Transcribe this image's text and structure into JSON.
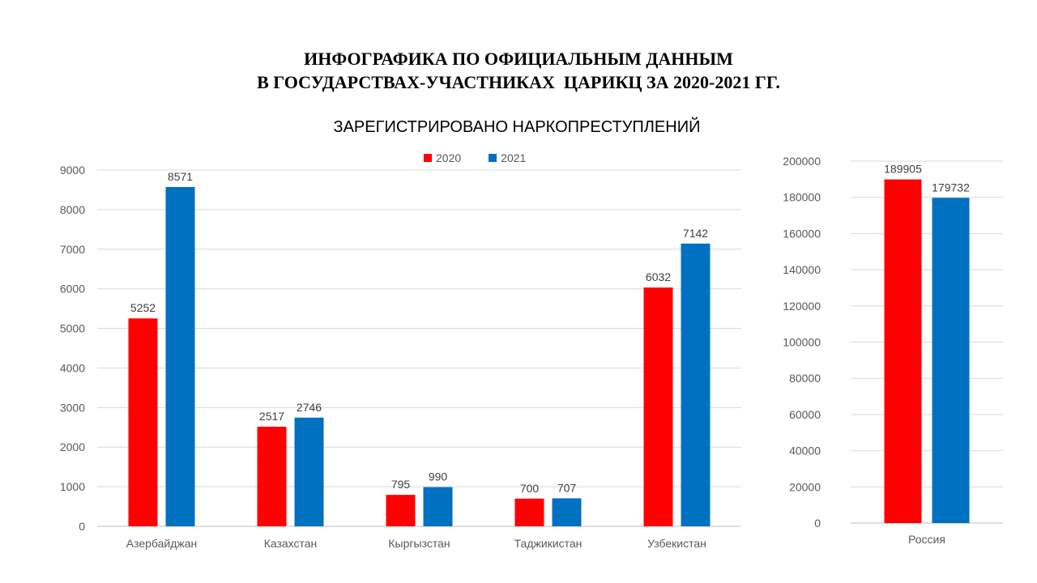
{
  "header": {
    "title_lines": [
      "ИНФОГРАФИКА ПО ОФИЦИАЛЬНЫМ ДАННЫМ",
      "В ГОСУДАРСТВАХ-УЧАСТНИКАХ  ЦАРИКЦ ЗА 2020-2021 ГГ."
    ],
    "subtitle": "ЗАРЕГИСТРИРОВАНО НАРКОПРЕСТУПЛЕНИЙ"
  },
  "legend": [
    {
      "name": "2020",
      "color": "#FF0000"
    },
    {
      "name": "2021",
      "color": "#0070C0"
    }
  ],
  "chart_data": [
    {
      "type": "bar",
      "categories": [
        "Азербайджан",
        "Казахстан",
        "Кыргызстан",
        "Таджикистан",
        "Узбекистан"
      ],
      "series": [
        {
          "name": "2020",
          "color": "#FF0000",
          "values": [
            5252,
            2517,
            795,
            700,
            6032
          ]
        },
        {
          "name": "2021",
          "color": "#0070C0",
          "values": [
            8571,
            2746,
            990,
            707,
            7142
          ]
        }
      ],
      "ylim": [
        0,
        9000
      ],
      "yticks": [
        0,
        1000,
        2000,
        3000,
        4000,
        5000,
        6000,
        7000,
        8000,
        9000
      ],
      "grid": true,
      "data_labels": true
    },
    {
      "type": "bar",
      "categories": [
        "Россия"
      ],
      "series": [
        {
          "name": "2020",
          "color": "#FF0000",
          "values": [
            189905
          ]
        },
        {
          "name": "2021",
          "color": "#0070C0",
          "values": [
            179732
          ]
        }
      ],
      "ylim": [
        0,
        200000
      ],
      "yticks": [
        0,
        20000,
        40000,
        60000,
        80000,
        100000,
        120000,
        140000,
        160000,
        180000,
        200000
      ],
      "grid": true,
      "data_labels": true
    }
  ]
}
